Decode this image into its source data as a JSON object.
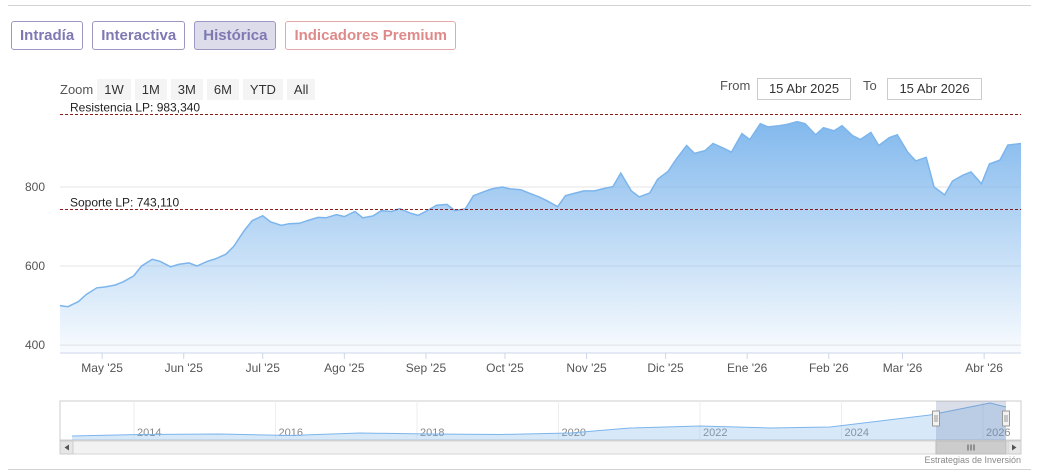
{
  "tabs": [
    {
      "label": "Intradía",
      "active": false
    },
    {
      "label": "Interactiva",
      "active": false
    },
    {
      "label": "Histórica",
      "active": true
    },
    {
      "label": "Indicadores Premium",
      "active": false
    }
  ],
  "zoom": {
    "label": "Zoom",
    "buttons": [
      "1W",
      "1M",
      "3M",
      "6M",
      "YTD",
      "All"
    ],
    "from_label": "From",
    "from_value": "15 Abr 2025",
    "to_label": "To",
    "to_value": "15 Abr 2026"
  },
  "credit": "Estrategias de Inversión",
  "colors": {
    "line": "#7cb5ec",
    "accent": "#7e78b3",
    "premium": "#de8a8a",
    "level_line": "#8b1a1a"
  },
  "chart_data": {
    "type": "area",
    "y_ticks": [
      400,
      600,
      800
    ],
    "ylim": [
      380,
      1020
    ],
    "x_ticks": [
      "May '25",
      "Jun '25",
      "Jul '25",
      "Ago '25",
      "Sep '25",
      "Oct '25",
      "Nov '25",
      "Dic '25",
      "Ene '26",
      "Feb '26",
      "Mar '26",
      "Abr '26"
    ],
    "x_tick_dates": [
      "2025-05-01",
      "2025-06-01",
      "2025-07-01",
      "2025-08-01",
      "2025-09-01",
      "2025-10-01",
      "2025-11-01",
      "2025-12-01",
      "2026-01-01",
      "2026-02-01",
      "2026-03-01",
      "2026-04-01"
    ],
    "x_range": [
      "2025-04-15",
      "2026-04-15"
    ],
    "levels": [
      {
        "label": "Resistencia LP: 983,340",
        "value": 983.34
      },
      {
        "label": "Soporte LP: 743,110",
        "value": 743.11
      }
    ],
    "series": [
      {
        "x": [
          "2025-04-15",
          "2025-04-18",
          "2025-04-22",
          "2025-04-25",
          "2025-04-29",
          "2025-05-02",
          "2025-05-06",
          "2025-05-09",
          "2025-05-13",
          "2025-05-16",
          "2025-05-20",
          "2025-05-23",
          "2025-05-27",
          "2025-05-30",
          "2025-06-03",
          "2025-06-06",
          "2025-06-10",
          "2025-06-13",
          "2025-06-17",
          "2025-06-20",
          "2025-06-24",
          "2025-06-27",
          "2025-07-01",
          "2025-07-04",
          "2025-07-08",
          "2025-07-11",
          "2025-07-15",
          "2025-07-18",
          "2025-07-22",
          "2025-07-25",
          "2025-07-29",
          "2025-08-01",
          "2025-08-05",
          "2025-08-08",
          "2025-08-12",
          "2025-08-15",
          "2025-08-19",
          "2025-08-22",
          "2025-08-26",
          "2025-08-29",
          "2025-09-02",
          "2025-09-05",
          "2025-09-09",
          "2025-09-12",
          "2025-09-16",
          "2025-09-19",
          "2025-09-23",
          "2025-09-26",
          "2025-09-30",
          "2025-10-03",
          "2025-10-07",
          "2025-10-10",
          "2025-10-14",
          "2025-10-17",
          "2025-10-21",
          "2025-10-24",
          "2025-10-28",
          "2025-10-31",
          "2025-11-04",
          "2025-11-07",
          "2025-11-11",
          "2025-11-14",
          "2025-11-18",
          "2025-11-21",
          "2025-11-25",
          "2025-11-28",
          "2025-12-02",
          "2025-12-05",
          "2025-12-09",
          "2025-12-12",
          "2025-12-16",
          "2025-12-19",
          "2025-12-23",
          "2025-12-26",
          "2025-12-30",
          "2026-01-02",
          "2026-01-06",
          "2026-01-09",
          "2026-01-13",
          "2026-01-16",
          "2026-01-20",
          "2026-01-23",
          "2026-01-27",
          "2026-01-30",
          "2026-02-03",
          "2026-02-06",
          "2026-02-10",
          "2026-02-13",
          "2026-02-17",
          "2026-02-20",
          "2026-02-24",
          "2026-02-27",
          "2026-03-03",
          "2026-03-06",
          "2026-03-10",
          "2026-03-13",
          "2026-03-17",
          "2026-03-20",
          "2026-03-24",
          "2026-03-27",
          "2026-03-31",
          "2026-04-03",
          "2026-04-07",
          "2026-04-10",
          "2026-04-15"
        ],
        "values": [
          500,
          497,
          510,
          528,
          545,
          547,
          552,
          560,
          575,
          600,
          617,
          612,
          598,
          604,
          608,
          600,
          612,
          618,
          630,
          650,
          690,
          715,
          727,
          712,
          703,
          707,
          708,
          715,
          723,
          722,
          730,
          725,
          738,
          722,
          727,
          740,
          738,
          745,
          734,
          728,
          742,
          754,
          756,
          740,
          745,
          778,
          788,
          795,
          800,
          795,
          793,
          785,
          775,
          765,
          750,
          778,
          785,
          790,
          790,
          795,
          801,
          835,
          790,
          775,
          785,
          820,
          840,
          870,
          905,
          885,
          892,
          910,
          898,
          888,
          935,
          920,
          960,
          952,
          955,
          958,
          965,
          960,
          932,
          950,
          942,
          955,
          930,
          920,
          938,
          905,
          925,
          932,
          888,
          866,
          875,
          800,
          780,
          815,
          830,
          838,
          808,
          858,
          868,
          906,
          910
        ]
      }
    ]
  },
  "navigator": {
    "year_labels": [
      "2014",
      "2016",
      "2018",
      "2020",
      "2022",
      "2024",
      "2026"
    ]
  }
}
